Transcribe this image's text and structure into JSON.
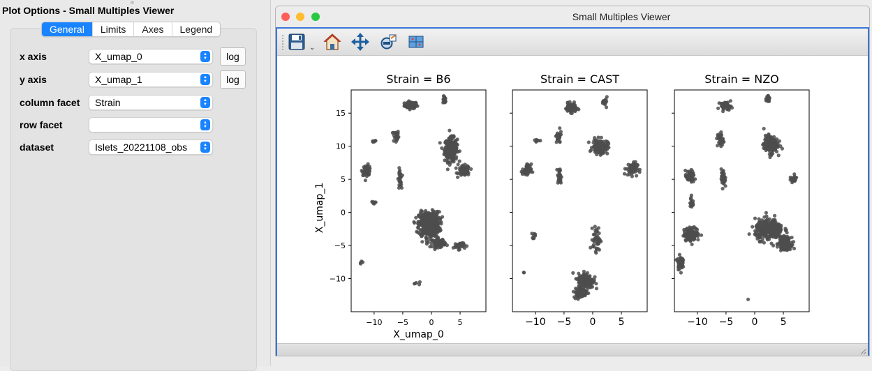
{
  "options_panel": {
    "title": "Plot Options - Small Multiples Viewer",
    "tabs": [
      {
        "label": "General",
        "active": true
      },
      {
        "label": "Limits",
        "active": false
      },
      {
        "label": "Axes",
        "active": false
      },
      {
        "label": "Legend",
        "active": false
      }
    ],
    "fields": {
      "x_axis": {
        "label": "x axis",
        "value": "X_umap_0",
        "log_label": "log"
      },
      "y_axis": {
        "label": "y axis",
        "value": "X_umap_1",
        "log_label": "log"
      },
      "column_facet": {
        "label": "column facet",
        "value": "Strain"
      },
      "row_facet": {
        "label": "row facet",
        "value": ""
      },
      "dataset": {
        "label": "dataset",
        "value": "Islets_20221108_obs"
      }
    }
  },
  "viewer": {
    "title": "Small Multiples Viewer",
    "traffic_colors": {
      "close": "#ff5f57",
      "minimize": "#febc2e",
      "zoom": "#28c840"
    },
    "toolbar_icons": [
      "save-icon",
      "home-icon",
      "pan-move-icon",
      "zoom-icon",
      "subplots-config-icon"
    ],
    "plot": {
      "xlabel": "X_umap_0",
      "ylabel": "X_umap_1",
      "point_color": "#4d4d4d",
      "xticks": [
        -10,
        -5,
        0,
        5
      ],
      "yticks": [
        -10,
        -5,
        0,
        5,
        10,
        15
      ],
      "panels": [
        {
          "title": "Strain = B6"
        },
        {
          "title": "Strain = CAST"
        },
        {
          "title": "Strain = NZO"
        }
      ]
    }
  },
  "chart_data": {
    "type": "scatter",
    "facet_by": "Strain",
    "xlabel": "X_umap_0",
    "ylabel": "X_umap_1",
    "xlim": [
      -14,
      9.5
    ],
    "ylim": [
      -15,
      18.5
    ],
    "point_color": "#4d4d4d",
    "panels": [
      {
        "title": "Strain = B6",
        "clusters": [
          {
            "x": -3.6,
            "y": 16.2,
            "sx": 1.0,
            "sy": 0.45,
            "n": 90
          },
          {
            "x": 2.3,
            "y": 17.0,
            "sx": 0.25,
            "sy": 0.5,
            "n": 20
          },
          {
            "x": -6.2,
            "y": 11.5,
            "sx": 0.45,
            "sy": 0.9,
            "n": 30
          },
          {
            "x": -10.0,
            "y": 10.8,
            "sx": 0.4,
            "sy": 0.2,
            "n": 8
          },
          {
            "x": 3.4,
            "y": 9.5,
            "sx": 1.0,
            "sy": 1.6,
            "n": 260
          },
          {
            "x": 5.7,
            "y": 6.3,
            "sx": 0.9,
            "sy": 0.7,
            "n": 70
          },
          {
            "x": -11.3,
            "y": 6.4,
            "sx": 0.7,
            "sy": 0.7,
            "n": 50
          },
          {
            "x": -5.5,
            "y": 5.0,
            "sx": 0.25,
            "sy": 1.4,
            "n": 30
          },
          {
            "x": -10.1,
            "y": 1.5,
            "sx": 0.3,
            "sy": 0.15,
            "n": 8
          },
          {
            "x": -0.4,
            "y": -1.8,
            "sx": 1.6,
            "sy": 1.7,
            "n": 500
          },
          {
            "x": 1.3,
            "y": -4.6,
            "sx": 1.0,
            "sy": 0.6,
            "n": 90
          },
          {
            "x": 4.8,
            "y": -5.0,
            "sx": 0.9,
            "sy": 0.5,
            "n": 30
          },
          {
            "x": -12.3,
            "y": -7.6,
            "sx": 0.3,
            "sy": 0.4,
            "n": 4
          },
          {
            "x": -2.6,
            "y": -10.8,
            "sx": 0.7,
            "sy": 0.5,
            "n": 5
          }
        ]
      },
      {
        "title": "Strain = CAST",
        "clusters": [
          {
            "x": -3.8,
            "y": 15.8,
            "sx": 0.9,
            "sy": 0.6,
            "n": 70
          },
          {
            "x": 2.2,
            "y": 16.7,
            "sx": 0.3,
            "sy": 0.6,
            "n": 20
          },
          {
            "x": -6.0,
            "y": 11.3,
            "sx": 0.5,
            "sy": 0.9,
            "n": 30
          },
          {
            "x": -9.8,
            "y": 10.9,
            "sx": 0.4,
            "sy": 0.2,
            "n": 8
          },
          {
            "x": 1.3,
            "y": 9.9,
            "sx": 1.2,
            "sy": 1.0,
            "n": 150
          },
          {
            "x": 6.8,
            "y": 6.6,
            "sx": 0.9,
            "sy": 0.9,
            "n": 60
          },
          {
            "x": -11.5,
            "y": 6.3,
            "sx": 0.7,
            "sy": 0.9,
            "n": 40
          },
          {
            "x": -5.8,
            "y": 5.4,
            "sx": 0.3,
            "sy": 1.2,
            "n": 30
          },
          {
            "x": -10.3,
            "y": -3.6,
            "sx": 0.7,
            "sy": 0.9,
            "n": 8
          },
          {
            "x": 0.7,
            "y": -4.0,
            "sx": 0.6,
            "sy": 1.6,
            "n": 50
          },
          {
            "x": -1.2,
            "y": -10.3,
            "sx": 1.2,
            "sy": 1.0,
            "n": 220
          },
          {
            "x": -2.2,
            "y": -12.2,
            "sx": 1.0,
            "sy": 0.6,
            "n": 90
          },
          {
            "x": -12.0,
            "y": -9.0,
            "sx": 0.2,
            "sy": 0.2,
            "n": 2
          }
        ]
      },
      {
        "title": "Strain = NZO",
        "clusters": [
          {
            "x": -5.0,
            "y": 16.1,
            "sx": 0.9,
            "sy": 0.5,
            "n": 50
          },
          {
            "x": 2.3,
            "y": 17.2,
            "sx": 0.3,
            "sy": 0.5,
            "n": 20
          },
          {
            "x": -6.0,
            "y": 11.0,
            "sx": 0.45,
            "sy": 1.0,
            "n": 40
          },
          {
            "x": 2.8,
            "y": 10.3,
            "sx": 1.1,
            "sy": 1.2,
            "n": 170
          },
          {
            "x": 6.8,
            "y": 5.0,
            "sx": 0.6,
            "sy": 0.4,
            "n": 30
          },
          {
            "x": -11.3,
            "y": 5.4,
            "sx": 0.7,
            "sy": 0.8,
            "n": 60
          },
          {
            "x": -5.5,
            "y": 5.2,
            "sx": 0.3,
            "sy": 1.3,
            "n": 30
          },
          {
            "x": -11.0,
            "y": 1.5,
            "sx": 0.3,
            "sy": 0.9,
            "n": 25
          },
          {
            "x": -11.0,
            "y": -3.3,
            "sx": 1.2,
            "sy": 0.9,
            "n": 120
          },
          {
            "x": -13.0,
            "y": -7.6,
            "sx": 0.4,
            "sy": 0.9,
            "n": 60
          },
          {
            "x": 2.5,
            "y": -2.6,
            "sx": 2.2,
            "sy": 1.4,
            "n": 300
          },
          {
            "x": 5.3,
            "y": -4.7,
            "sx": 0.9,
            "sy": 0.8,
            "n": 200
          },
          {
            "x": -1.1,
            "y": -13.2,
            "sx": 0.1,
            "sy": 0.1,
            "n": 1
          }
        ]
      }
    ]
  }
}
